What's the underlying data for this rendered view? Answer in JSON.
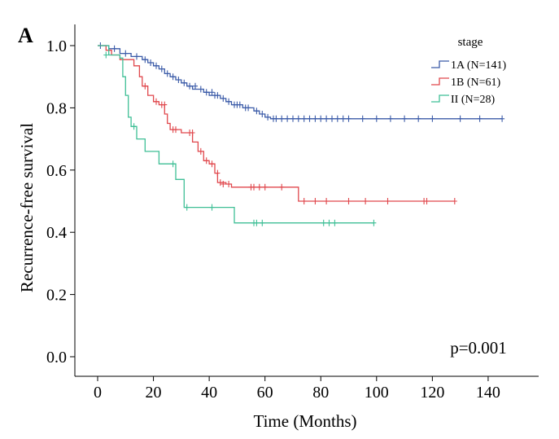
{
  "panel_label": "A",
  "chart_data": {
    "type": "line",
    "subtype": "kaplan-meier",
    "title": "",
    "xlabel": "Time (Months)",
    "ylabel": "Recurrence-free survival",
    "xlim": [
      -8,
      158
    ],
    "ylim": [
      -0.05,
      1.05
    ],
    "xticks": [
      0,
      20,
      40,
      60,
      80,
      100,
      120,
      140
    ],
    "yticks": [
      0.0,
      0.2,
      0.4,
      0.6,
      0.8,
      1.0
    ],
    "ytick_labels": [
      "0.0",
      "0.2",
      "0.4",
      "0.6",
      "0.8",
      "1.0"
    ],
    "grid": false,
    "legend_title": "stage",
    "legend_position": "top-right",
    "annotation": "p=0.001",
    "series": [
      {
        "name": "1A (N=141)",
        "color": "#3b5ba8",
        "steps": [
          [
            0,
            1.0
          ],
          [
            4,
            0.99
          ],
          [
            8,
            0.975
          ],
          [
            12,
            0.965
          ],
          [
            16,
            0.955
          ],
          [
            18,
            0.945
          ],
          [
            20,
            0.935
          ],
          [
            22,
            0.925
          ],
          [
            24,
            0.91
          ],
          [
            26,
            0.9
          ],
          [
            28,
            0.89
          ],
          [
            30,
            0.88
          ],
          [
            32,
            0.87
          ],
          [
            34,
            0.86
          ],
          [
            38,
            0.85
          ],
          [
            40,
            0.84
          ],
          [
            44,
            0.83
          ],
          [
            46,
            0.82
          ],
          [
            48,
            0.81
          ],
          [
            52,
            0.8
          ],
          [
            56,
            0.79
          ],
          [
            58,
            0.78
          ],
          [
            60,
            0.77
          ],
          [
            62,
            0.765
          ],
          [
            145,
            0.765
          ]
        ],
        "censors": [
          [
            1,
            1.0
          ],
          [
            6,
            0.99
          ],
          [
            10,
            0.975
          ],
          [
            14,
            0.965
          ],
          [
            17,
            0.955
          ],
          [
            19,
            0.945
          ],
          [
            21,
            0.935
          ],
          [
            23,
            0.925
          ],
          [
            25,
            0.91
          ],
          [
            27,
            0.9
          ],
          [
            29,
            0.89
          ],
          [
            31,
            0.88
          ],
          [
            33,
            0.87
          ],
          [
            35,
            0.87
          ],
          [
            37,
            0.86
          ],
          [
            39,
            0.85
          ],
          [
            41,
            0.85
          ],
          [
            42,
            0.84
          ],
          [
            43,
            0.84
          ],
          [
            45,
            0.83
          ],
          [
            47,
            0.82
          ],
          [
            49,
            0.81
          ],
          [
            50,
            0.81
          ],
          [
            51,
            0.81
          ],
          [
            53,
            0.8
          ],
          [
            54,
            0.8
          ],
          [
            57,
            0.79
          ],
          [
            59,
            0.78
          ],
          [
            61,
            0.77
          ],
          [
            63,
            0.765
          ],
          [
            64,
            0.765
          ],
          [
            66,
            0.765
          ],
          [
            68,
            0.765
          ],
          [
            70,
            0.765
          ],
          [
            72,
            0.765
          ],
          [
            74,
            0.765
          ],
          [
            76,
            0.765
          ],
          [
            78,
            0.765
          ],
          [
            80,
            0.765
          ],
          [
            82,
            0.765
          ],
          [
            84,
            0.765
          ],
          [
            86,
            0.765
          ],
          [
            88,
            0.765
          ],
          [
            90,
            0.765
          ],
          [
            95,
            0.765
          ],
          [
            100,
            0.765
          ],
          [
            105,
            0.765
          ],
          [
            110,
            0.765
          ],
          [
            115,
            0.765
          ],
          [
            120,
            0.765
          ],
          [
            130,
            0.765
          ],
          [
            137,
            0.765
          ],
          [
            145,
            0.765
          ]
        ]
      },
      {
        "name": "1B (N=61)",
        "color": "#e0474c",
        "steps": [
          [
            0,
            1.0
          ],
          [
            3,
            0.985
          ],
          [
            5,
            0.97
          ],
          [
            8,
            0.955
          ],
          [
            13,
            0.935
          ],
          [
            15,
            0.9
          ],
          [
            16,
            0.87
          ],
          [
            18,
            0.84
          ],
          [
            20,
            0.82
          ],
          [
            22,
            0.81
          ],
          [
            24,
            0.78
          ],
          [
            25,
            0.75
          ],
          [
            26,
            0.73
          ],
          [
            30,
            0.72
          ],
          [
            34,
            0.69
          ],
          [
            36,
            0.66
          ],
          [
            38,
            0.63
          ],
          [
            40,
            0.62
          ],
          [
            42,
            0.59
          ],
          [
            43,
            0.56
          ],
          [
            46,
            0.555
          ],
          [
            48,
            0.545
          ],
          [
            72,
            0.5
          ],
          [
            128,
            0.5
          ]
        ],
        "censors": [
          [
            17,
            0.87
          ],
          [
            21,
            0.82
          ],
          [
            23,
            0.81
          ],
          [
            24,
            0.81
          ],
          [
            27,
            0.73
          ],
          [
            28,
            0.73
          ],
          [
            33,
            0.72
          ],
          [
            34,
            0.72
          ],
          [
            37,
            0.66
          ],
          [
            39,
            0.63
          ],
          [
            41,
            0.62
          ],
          [
            43,
            0.59
          ],
          [
            44,
            0.56
          ],
          [
            45,
            0.555
          ],
          [
            47,
            0.555
          ],
          [
            55,
            0.545
          ],
          [
            56,
            0.545
          ],
          [
            58,
            0.545
          ],
          [
            60,
            0.545
          ],
          [
            66,
            0.545
          ],
          [
            74,
            0.5
          ],
          [
            78,
            0.5
          ],
          [
            82,
            0.5
          ],
          [
            90,
            0.5
          ],
          [
            96,
            0.5
          ],
          [
            104,
            0.5
          ],
          [
            117,
            0.5
          ],
          [
            118,
            0.5
          ],
          [
            128,
            0.5
          ]
        ]
      },
      {
        "name": "II (N=28)",
        "color": "#3fbf96",
        "steps": [
          [
            0,
            1.0
          ],
          [
            4,
            0.97
          ],
          [
            8,
            0.96
          ],
          [
            9,
            0.9
          ],
          [
            10,
            0.84
          ],
          [
            11,
            0.77
          ],
          [
            12,
            0.74
          ],
          [
            14,
            0.7
          ],
          [
            17,
            0.66
          ],
          [
            22,
            0.62
          ],
          [
            28,
            0.57
          ],
          [
            31,
            0.48
          ],
          [
            49,
            0.43
          ],
          [
            99,
            0.43
          ]
        ],
        "censors": [
          [
            3,
            0.97
          ],
          [
            13,
            0.74
          ],
          [
            27,
            0.62
          ],
          [
            32,
            0.48
          ],
          [
            41,
            0.48
          ],
          [
            56,
            0.43
          ],
          [
            57,
            0.43
          ],
          [
            59,
            0.43
          ],
          [
            81,
            0.43
          ],
          [
            83,
            0.43
          ],
          [
            85,
            0.43
          ],
          [
            99,
            0.43
          ]
        ]
      }
    ]
  }
}
